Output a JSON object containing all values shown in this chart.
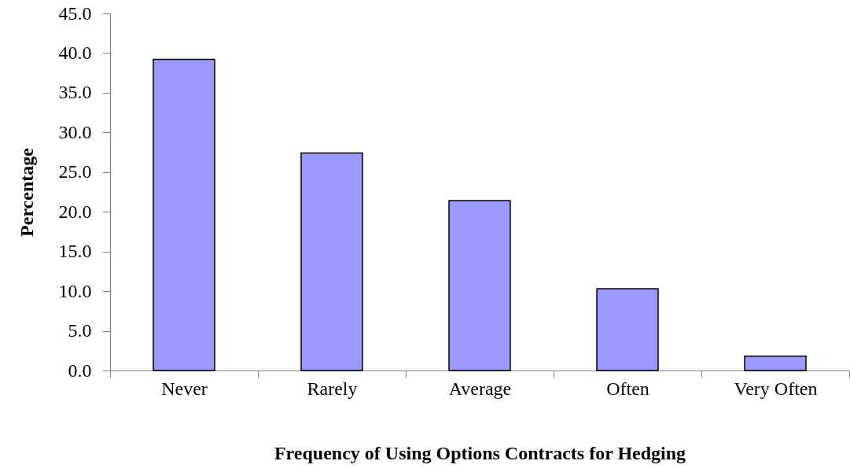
{
  "chart_data": {
    "type": "bar",
    "xlabel": "Frequency of Using Options Contracts for Hedging",
    "ylabel": "Percentage",
    "categories": [
      "Never",
      "Rarely",
      "Average",
      "Often",
      "Very Often"
    ],
    "values": [
      39.2,
      27.4,
      21.4,
      10.3,
      1.8
    ],
    "color": "#9999ff",
    "ylim": [
      0,
      45
    ],
    "yticks": [
      {
        "value": 0,
        "label": "0.0"
      },
      {
        "value": 5,
        "label": "5.0"
      },
      {
        "value": 10,
        "label": "10.0"
      },
      {
        "value": 15,
        "label": "15.0"
      },
      {
        "value": 20,
        "label": "20.0"
      },
      {
        "value": 25,
        "label": "25.0"
      },
      {
        "value": 30,
        "label": "30.0"
      },
      {
        "value": 35,
        "label": "35.0"
      },
      {
        "value": 40,
        "label": "40.0"
      },
      {
        "value": 45,
        "label": "45.0"
      }
    ],
    "grid": false
  }
}
